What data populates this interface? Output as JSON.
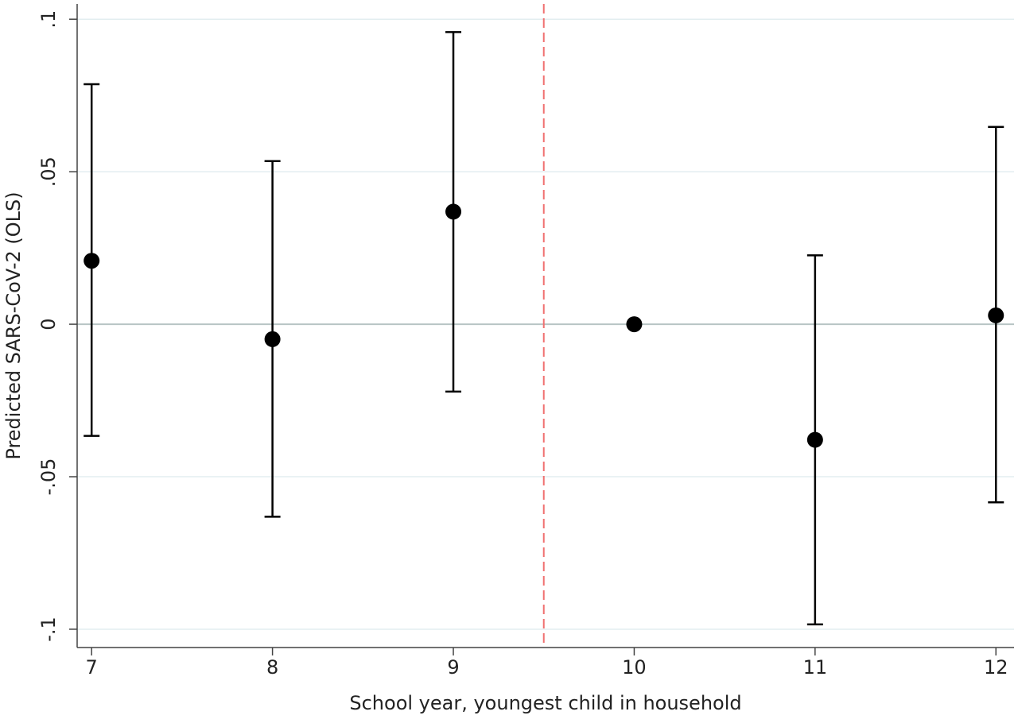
{
  "chart_data": {
    "type": "errorbar",
    "x_label": "School year, youngest child in household",
    "y_label": "Predicted SARS-CoV-2 (OLS)",
    "x": [
      7,
      8,
      9,
      10,
      11,
      12
    ],
    "values": [
      0.0208,
      -0.0049,
      0.0369,
      0,
      -0.0379,
      0.0029
    ],
    "ci_low": [
      -0.0366,
      -0.0631,
      -0.0221,
      null,
      -0.0984,
      -0.0584
    ],
    "ci_high": [
      0.0787,
      0.0535,
      0.0958,
      null,
      0.0226,
      0.0647
    ],
    "color": "#000000",
    "xlim": [
      6.92,
      12.1
    ],
    "xticks": [
      7,
      8,
      9,
      10,
      11,
      12
    ],
    "ylim": [
      -0.106,
      0.105
    ],
    "yticks": [
      {
        "value": -0.1,
        "label": "-.1"
      },
      {
        "value": -0.05,
        "label": "-.05"
      },
      {
        "value": 0,
        "label": "0"
      },
      {
        "value": 0.05,
        "label": ".05"
      },
      {
        "value": 0.1,
        "label": ".1"
      }
    ],
    "grid": true,
    "grid_color": "#e3eef0",
    "hline": 0,
    "hline_color": "#b8c4c4",
    "vline": 9.5,
    "vline_color": "#f07070"
  }
}
